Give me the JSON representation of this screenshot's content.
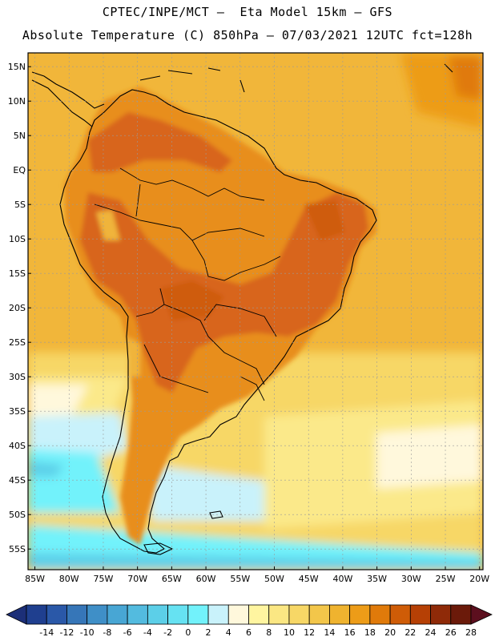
{
  "header": {
    "line1": "CPTEC/INPE/MCT –  Eta Model 15km – GFS",
    "line2": "Absolute Temperature (C) 850hPa – 07/03/2021 12UTC fct=128h"
  },
  "axes": {
    "lat_labels": [
      "15N",
      "10N",
      "5N",
      "EQ",
      "5S",
      "10S",
      "15S",
      "20S",
      "25S",
      "30S",
      "35S",
      "40S",
      "45S",
      "50S",
      "55S"
    ],
    "lon_labels": [
      "85W",
      "80W",
      "75W",
      "70W",
      "65W",
      "60W",
      "55W",
      "50W",
      "45W",
      "40W",
      "35W",
      "30W",
      "25W",
      "20W"
    ]
  },
  "colorbar": {
    "labels": [
      "-14",
      "-12",
      "-10",
      "-8",
      "-6",
      "-4",
      "-2",
      "0",
      "2",
      "4",
      "6",
      "8",
      "10",
      "12",
      "14",
      "16",
      "18",
      "20",
      "22",
      "24",
      "26",
      "28"
    ],
    "colors": [
      "#1f3f8f",
      "#2a58a8",
      "#3676b8",
      "#3f8fc7",
      "#48a6d4",
      "#53bbdf",
      "#5ccfe8",
      "#66e2f2",
      "#72f2fb",
      "#c9f2fb",
      "#fff8dc",
      "#fff5a0",
      "#fbe783",
      "#f7d766",
      "#f3c64a",
      "#efb32f",
      "#ed9c18",
      "#e07a0a",
      "#cf5c07",
      "#b64005",
      "#8f2a08",
      "#6b1a0a"
    ],
    "arrow_left_color": "#1c2f78",
    "arrow_right_color": "#5c0f1e"
  },
  "map_colors": {
    "ocean_warm": "#f1b63a",
    "ocean_mid": "#f7d766",
    "ocean_cool": "#fbe98a",
    "cold_band": "#72f2fb",
    "land_hot": "#d8651a",
    "land_warm": "#e88e1e",
    "andes_cool": "#f0b43a",
    "coast": "#000000",
    "grid": "#9a9a9a"
  }
}
